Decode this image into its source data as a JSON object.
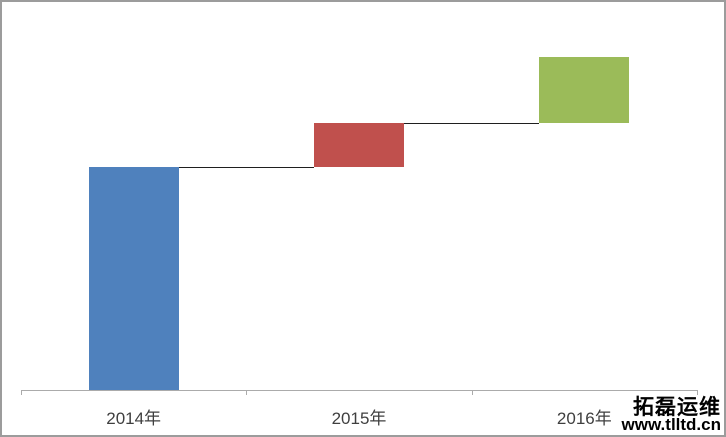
{
  "watermark": {
    "brand": "拓磊运维",
    "url": "www.tlltd.cn"
  },
  "chart_data": {
    "type": "waterfall",
    "title": "",
    "xlabel": "",
    "ylabel": "",
    "categories": [
      "2014年",
      "2015年",
      "2016年"
    ],
    "series": [
      {
        "name": "2014年",
        "start": 0,
        "end": 223,
        "delta": 223,
        "color": "#4F81BD"
      },
      {
        "name": "2015年",
        "start": 223,
        "end": 267,
        "delta": 44,
        "color": "#C0504D"
      },
      {
        "name": "2016年",
        "start": 267,
        "end": 333,
        "delta": 66,
        "color": "#9BBB59"
      }
    ],
    "cumulative": [
      223,
      267,
      333
    ],
    "connectors": [
      {
        "from": 0,
        "to": 1,
        "level": 223
      },
      {
        "from": 1,
        "to": 2,
        "level": 267
      }
    ],
    "ylim": [
      0,
      390
    ],
    "value_note": "no value axis shown in image; values estimated in relative units from bar heights",
    "legend": "none",
    "grid": "off",
    "axis_color": "#ababab",
    "connector_color": "#1f1f1f",
    "label_color": "#3f3f3f"
  }
}
